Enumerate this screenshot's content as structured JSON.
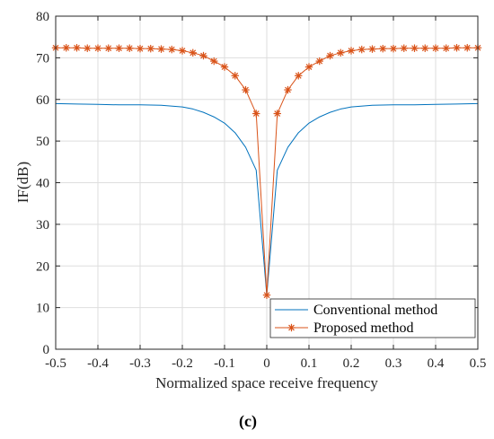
{
  "chart_data": {
    "type": "line",
    "xlabel": "Normalized space receive frequency",
    "ylabel": "IF(dB)",
    "xlim": [
      -0.5,
      0.5
    ],
    "ylim": [
      0,
      80
    ],
    "xticks": [
      -0.5,
      -0.4,
      -0.3,
      -0.2,
      -0.1,
      0,
      0.1,
      0.2,
      0.3,
      0.4,
      0.5
    ],
    "yticks": [
      0,
      10,
      20,
      30,
      40,
      50,
      60,
      70,
      80
    ],
    "xtick_labels": [
      "-0.5",
      "-0.4",
      "-0.3",
      "-0.2",
      "-0.1",
      "0",
      "0.1",
      "0.2",
      "0.3",
      "0.4",
      "0.5"
    ],
    "ytick_labels": [
      "0",
      "10",
      "20",
      "30",
      "40",
      "50",
      "60",
      "70",
      "80"
    ],
    "grid": true,
    "legend_position": "bottom-right",
    "series": [
      {
        "name": "Conventional method",
        "color": "#0072BD",
        "marker": "none",
        "x": [
          -0.5,
          -0.45,
          -0.4,
          -0.35,
          -0.3,
          -0.25,
          -0.2,
          -0.175,
          -0.15,
          -0.125,
          -0.1,
          -0.075,
          -0.05,
          -0.025,
          0,
          0.025,
          0.05,
          0.075,
          0.1,
          0.125,
          0.15,
          0.175,
          0.2,
          0.25,
          0.3,
          0.35,
          0.4,
          0.45,
          0.5
        ],
        "y": [
          59.0,
          58.9,
          58.8,
          58.7,
          58.7,
          58.6,
          58.2,
          57.7,
          56.9,
          55.8,
          54.3,
          52.0,
          48.5,
          43.0,
          13.0,
          43.0,
          48.5,
          52.0,
          54.3,
          55.8,
          56.9,
          57.7,
          58.2,
          58.6,
          58.7,
          58.7,
          58.8,
          58.9,
          59.0
        ]
      },
      {
        "name": "Proposed method",
        "color": "#D95319",
        "marker": "asterisk",
        "x": [
          -0.5,
          -0.475,
          -0.45,
          -0.425,
          -0.4,
          -0.375,
          -0.35,
          -0.325,
          -0.3,
          -0.275,
          -0.25,
          -0.225,
          -0.2,
          -0.175,
          -0.15,
          -0.125,
          -0.1,
          -0.075,
          -0.05,
          -0.025,
          0,
          0.025,
          0.05,
          0.075,
          0.1,
          0.125,
          0.15,
          0.175,
          0.2,
          0.225,
          0.25,
          0.275,
          0.3,
          0.325,
          0.35,
          0.375,
          0.4,
          0.425,
          0.45,
          0.475,
          0.5
        ],
        "y": [
          72.4,
          72.4,
          72.4,
          72.3,
          72.3,
          72.3,
          72.3,
          72.3,
          72.2,
          72.2,
          72.1,
          72.0,
          71.7,
          71.2,
          70.5,
          69.2,
          67.8,
          65.7,
          62.3,
          56.6,
          13.0,
          56.6,
          62.3,
          65.7,
          67.8,
          69.2,
          70.5,
          71.2,
          71.7,
          72.0,
          72.1,
          72.2,
          72.2,
          72.3,
          72.3,
          72.3,
          72.3,
          72.3,
          72.4,
          72.4,
          72.4
        ]
      }
    ]
  },
  "panel_label": "(c)"
}
